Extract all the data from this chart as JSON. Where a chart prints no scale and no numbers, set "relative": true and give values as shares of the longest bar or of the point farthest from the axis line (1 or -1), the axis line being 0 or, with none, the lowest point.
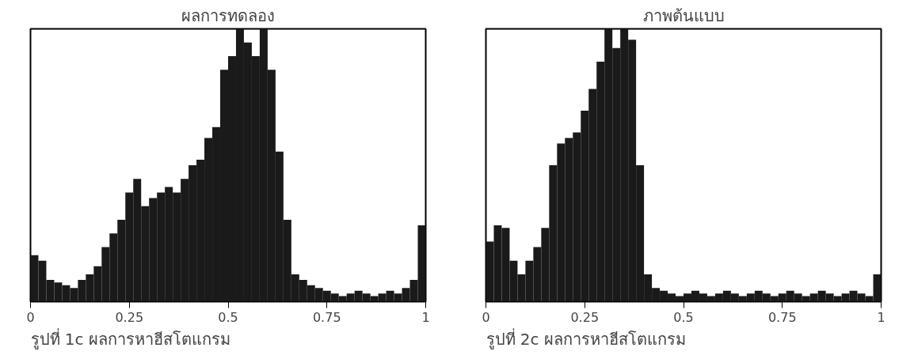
{
  "chart_data": [
    {
      "type": "bar",
      "title": "ผลการทดลอง",
      "annotations": [
        "รูปที่ 1c ผลการหาฮีสโตแกรม"
      ],
      "relative": true,
      "color": "#1a1a1a",
      "x": [
        0.01,
        0.03,
        0.05,
        0.07,
        0.09,
        0.11,
        0.13,
        0.15,
        0.17,
        0.19,
        0.21,
        0.23,
        0.25,
        0.27,
        0.29,
        0.31,
        0.33,
        0.35,
        0.37,
        0.39,
        0.41,
        0.43,
        0.45,
        0.47,
        0.49,
        0.51,
        0.53,
        0.55,
        0.57,
        0.59,
        0.61,
        0.63,
        0.65,
        0.67,
        0.69,
        0.71,
        0.73,
        0.75,
        0.77,
        0.79,
        0.81,
        0.83,
        0.85,
        0.87,
        0.89,
        0.91,
        0.93,
        0.95,
        0.97,
        0.99
      ],
      "values": [
        0.17,
        0.15,
        0.08,
        0.07,
        0.06,
        0.05,
        0.08,
        0.1,
        0.13,
        0.2,
        0.25,
        0.3,
        0.4,
        0.45,
        0.35,
        0.38,
        0.4,
        0.42,
        0.4,
        0.45,
        0.5,
        0.52,
        0.6,
        0.64,
        0.85,
        0.9,
        1,
        0.95,
        0.9,
        1,
        0.85,
        0.55,
        0.3,
        0.1,
        0.08,
        0.06,
        0.05,
        0.04,
        0.03,
        0.02,
        0.03,
        0.04,
        0.03,
        0.02,
        0.03,
        0.04,
        0.03,
        0.05,
        0.08,
        0.28
      ],
      "xlim": [
        0,
        1
      ],
      "xticks": [
        0,
        0.25,
        0.5,
        0.75,
        1
      ]
    },
    {
      "type": "bar",
      "title": "ภาพต้นแบบ",
      "annotations": [
        "รูปที่ 2c ผลการหาฮีสโตแกรม"
      ],
      "relative": true,
      "color": "#1a1a1a",
      "x": [
        0.01,
        0.03,
        0.05,
        0.07,
        0.09,
        0.11,
        0.13,
        0.15,
        0.17,
        0.19,
        0.21,
        0.23,
        0.25,
        0.27,
        0.29,
        0.31,
        0.33,
        0.35,
        0.37,
        0.39,
        0.41,
        0.43,
        0.45,
        0.47,
        0.49,
        0.51,
        0.53,
        0.55,
        0.57,
        0.59,
        0.61,
        0.63,
        0.65,
        0.67,
        0.69,
        0.71,
        0.73,
        0.75,
        0.77,
        0.79,
        0.81,
        0.83,
        0.85,
        0.87,
        0.89,
        0.91,
        0.93,
        0.95,
        0.97,
        0.99
      ],
      "values": [
        0.22,
        0.28,
        0.27,
        0.15,
        0.1,
        0.15,
        0.2,
        0.27,
        0.5,
        0.58,
        0.6,
        0.62,
        0.7,
        0.78,
        0.88,
        1,
        0.93,
        1,
        0.96,
        0.5,
        0.1,
        0.05,
        0.04,
        0.03,
        0.02,
        0.03,
        0.04,
        0.03,
        0.02,
        0.03,
        0.04,
        0.03,
        0.02,
        0.03,
        0.04,
        0.03,
        0.02,
        0.03,
        0.04,
        0.03,
        0.02,
        0.03,
        0.04,
        0.03,
        0.02,
        0.03,
        0.04,
        0.03,
        0.02,
        0.1
      ],
      "xlim": [
        0,
        1
      ],
      "xticks": [
        0,
        0.25,
        0.5,
        0.75,
        1
      ]
    }
  ]
}
